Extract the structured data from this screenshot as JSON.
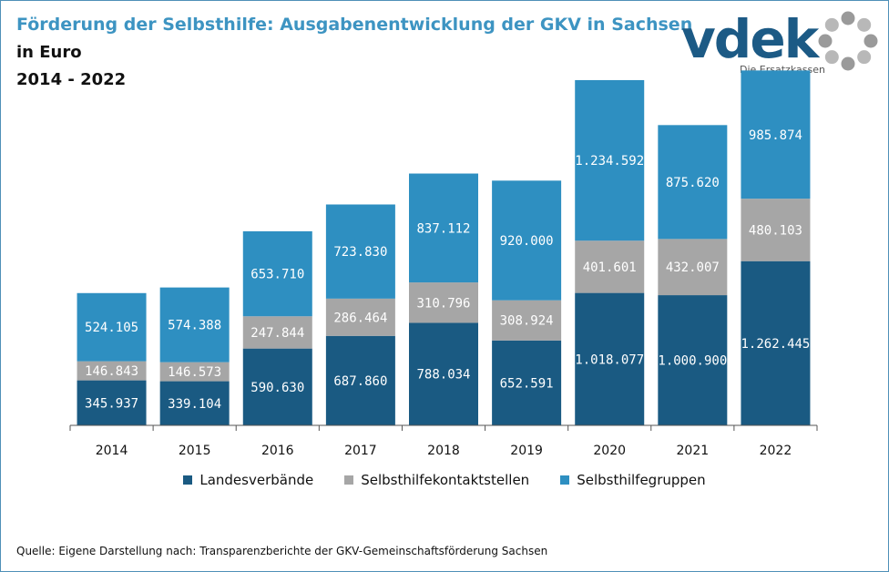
{
  "header": {
    "title": "Förderung der Selbsthilfe: Ausgabenentwicklung der GKV in Sachsen",
    "subtitle": "in Euro",
    "period": "2014 - 2022"
  },
  "logo": {
    "wordmark": "vdek",
    "tagline": "Die Ersatzkassen"
  },
  "source": "Quelle: Eigene Darstellung nach: Transparenzberichte der GKV-Gemeinschaftsförderung Sachsen",
  "colors": {
    "landesverbaende": "#1a5a82",
    "kontaktstellen": "#a6a6a6",
    "gruppen": "#2e8fc1",
    "accent": "#3d94c2"
  },
  "chart_data": {
    "type": "bar",
    "stacked": true,
    "categories": [
      "2014",
      "2015",
      "2016",
      "2017",
      "2018",
      "2019",
      "2020",
      "2021",
      "2022"
    ],
    "series": [
      {
        "name": "Landesverbände",
        "values": [
          345937,
          339104,
          590630,
          687860,
          788034,
          652591,
          1018077,
          1000900,
          1262445
        ],
        "labels": [
          "345.937",
          "339.104",
          "590.630",
          "687.860",
          "788.034",
          "652.591",
          "1.018.077",
          "1.000.900",
          "1.262.445"
        ]
      },
      {
        "name": "Selbsthilfekontaktstellen",
        "values": [
          146843,
          146573,
          247844,
          286464,
          310796,
          308924,
          401601,
          432007,
          480103
        ],
        "labels": [
          "146.843",
          "146.573",
          "247.844",
          "286.464",
          "310.796",
          "308.924",
          "401.601",
          "432.007",
          "480.103"
        ]
      },
      {
        "name": "Selbsthilfegruppen",
        "values": [
          524105,
          574388,
          653710,
          723830,
          837112,
          920000,
          1234592,
          875620,
          985874
        ],
        "labels": [
          "524.105",
          "574.388",
          "653.710",
          "723.830",
          "837.112",
          "920.000",
          "1.234.592",
          "875.620",
          "985.874"
        ]
      }
    ],
    "ylim": [
      0,
      2850000
    ],
    "grid": false,
    "legend": "bottom"
  }
}
